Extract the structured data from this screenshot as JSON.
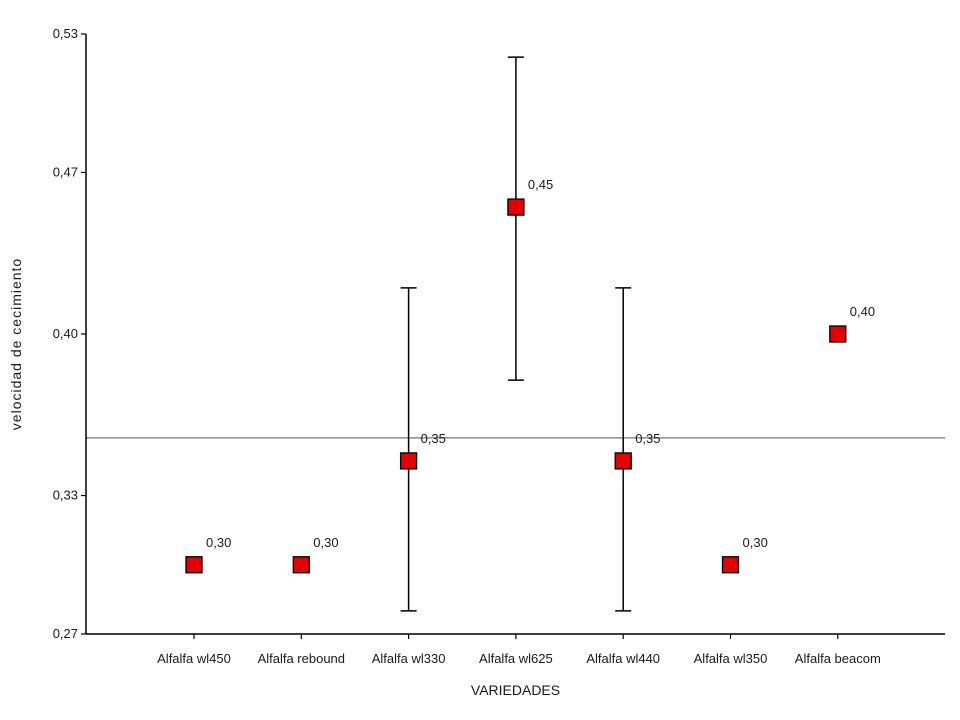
{
  "chart_data": {
    "type": "scatter",
    "xlabel": "VARIEDADES",
    "ylabel": "velocidad de cecimiento",
    "ylim": [
      0.27,
      0.53
    ],
    "yticks": [
      0.27,
      0.33,
      0.4,
      0.47,
      0.53
    ],
    "ytick_labels": [
      "0,27",
      "0,33",
      "0,40",
      "0,47",
      "0,53"
    ],
    "categories": [
      "Alfalfa wl450",
      "Alfalfa rebound",
      "Alfalfa wl330",
      "Alfalfa wl625",
      "Alfalfa wl440",
      "Alfalfa wl350",
      "Alfalfa beacom"
    ],
    "values": [
      0.3,
      0.3,
      0.345,
      0.455,
      0.345,
      0.3,
      0.4
    ],
    "value_labels": [
      "0,30",
      "0,30",
      "0,35",
      "0,45",
      "0,35",
      "0,30",
      "0,40"
    ],
    "error_bars": [
      null,
      null,
      [
        0.28,
        0.42
      ],
      [
        0.38,
        0.52
      ],
      [
        0.28,
        0.42
      ],
      null,
      null
    ],
    "reference_line": 0.355,
    "grid": false,
    "colors": {
      "marker": "#e30000",
      "marker_edge": "#000000",
      "reference_line": "#8c8c8c",
      "axis": "#000000",
      "error_bar": "#000000"
    }
  }
}
